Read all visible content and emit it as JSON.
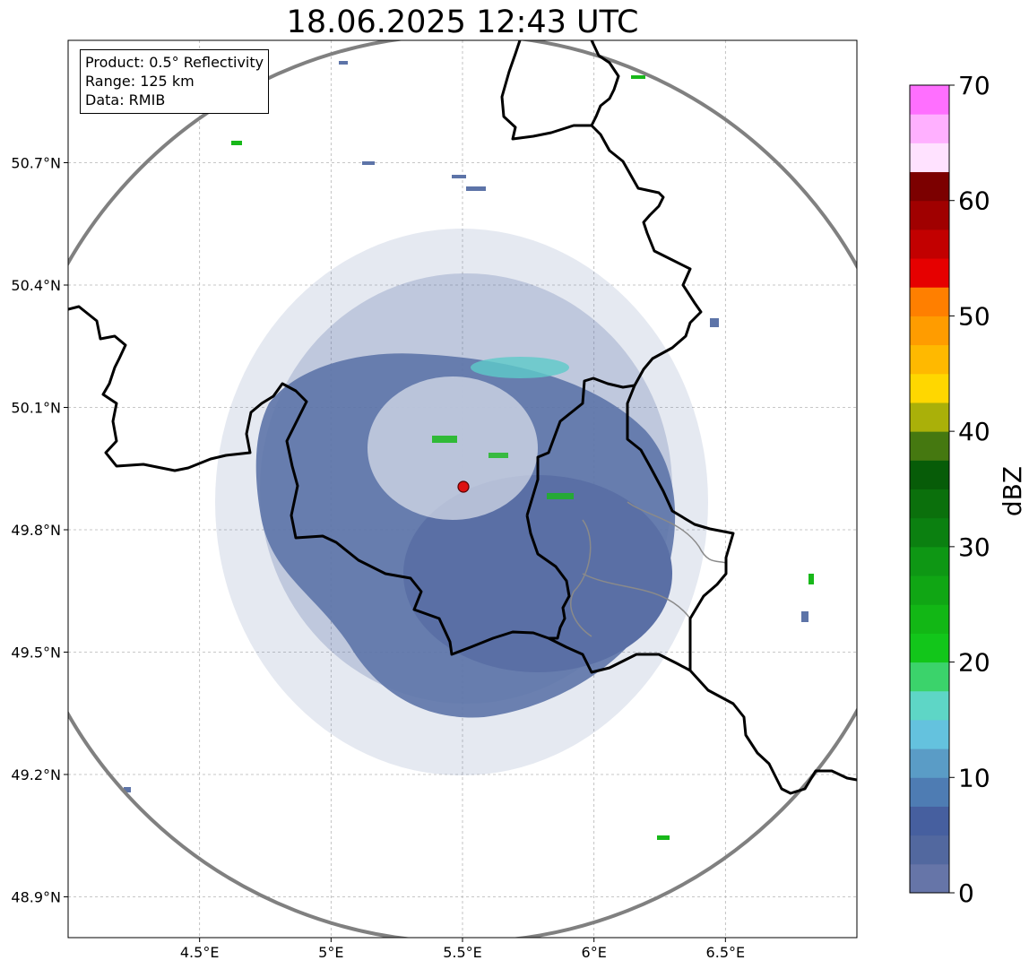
{
  "title": "18.06.2025 12:43 UTC",
  "info": {
    "product": "Product: 0.5° Reflectivity",
    "range": "Range: 125 km",
    "source": "Data: RMIB"
  },
  "map": {
    "lon_range": [
      4.0,
      7.0
    ],
    "lat_range": [
      48.8,
      51.0
    ],
    "lon_ticks": [
      4.5,
      5.0,
      5.5,
      6.0,
      6.5
    ],
    "lon_tick_labels": [
      "4.5°E",
      "5°E",
      "5.5°E",
      "6°E",
      "6.5°E"
    ],
    "lat_ticks": [
      48.9,
      49.2,
      49.5,
      49.8,
      50.1,
      50.4,
      50.7
    ],
    "lat_tick_labels": [
      "48.9°N",
      "49.2°N",
      "49.5°N",
      "49.8°N",
      "50.1°N",
      "50.4°N",
      "50.7°N"
    ],
    "radar_site": {
      "lon": 5.505,
      "lat": 49.915,
      "color": "#dd1111"
    },
    "range_ring_color": "#808080",
    "border_color": "#000000",
    "echo_colors": {
      "light": "#5d74a8",
      "moderate": "#5ecbc9",
      "strong": "#18b81a"
    }
  },
  "colorbar": {
    "label": "dBZ",
    "min": 0,
    "max": 70,
    "step": 2.5,
    "tick_values": [
      0,
      10,
      20,
      30,
      40,
      50,
      60,
      70
    ],
    "tick_labels": [
      "0",
      "10",
      "20",
      "30",
      "40",
      "50",
      "60",
      "70"
    ],
    "colors": [
      "#6675a8",
      "#52689f",
      "#465f9f",
      "#4e7cb3",
      "#5a9cc6",
      "#64c2de",
      "#5ed6c6",
      "#3bd36b",
      "#12c61a",
      "#12b715",
      "#10a614",
      "#0e9714",
      "#0b8010",
      "#0b700c",
      "#075c08",
      "#457810",
      "#aab009",
      "#ffd700",
      "#ffb900",
      "#ff9c00",
      "#ff7f00",
      "#e60000",
      "#c20000",
      "#a00000",
      "#7c0000",
      "#ffe2ff",
      "#ffb0ff",
      "#ff6fff",
      "#ec32ec"
    ]
  }
}
